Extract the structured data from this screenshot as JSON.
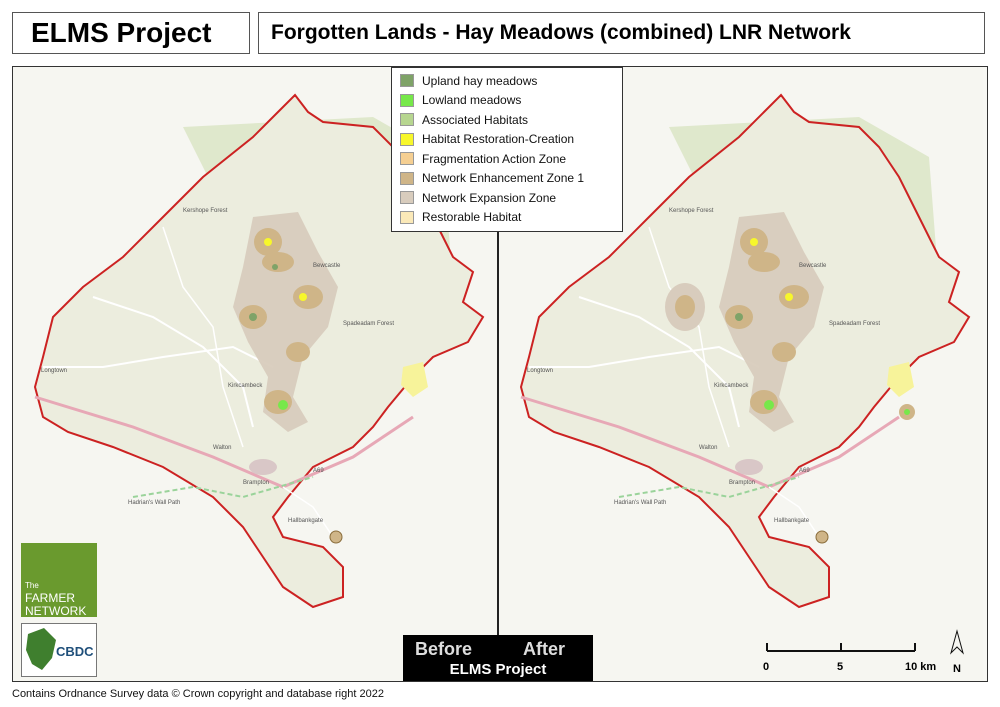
{
  "header": {
    "project_title": "ELMS Project",
    "map_title": "Forgotten Lands - Hay Meadows (combined) LNR Network"
  },
  "legend": [
    {
      "label": "Upland hay meadows",
      "color": "#7fa368"
    },
    {
      "label": "Lowland meadows",
      "color": "#77e84a"
    },
    {
      "label": "Associated Habitats",
      "color": "#b7d690"
    },
    {
      "label": "Habitat Restoration-Creation",
      "color": "#f7f72b"
    },
    {
      "label": "Fragmentation Action Zone",
      "color": "#f5cf92"
    },
    {
      "label": "Network Enhancement Zone 1",
      "color": "#cfb588"
    },
    {
      "label": "Network Expansion Zone",
      "color": "#d8ccbd"
    },
    {
      "label": "Restorable Habitat",
      "color": "#fbe9b8"
    }
  ],
  "comparison": {
    "before": "Before",
    "after": "After",
    "caption": "ELMS Project"
  },
  "scale_bar": {
    "labels": [
      "0",
      "5",
      "10 km"
    ],
    "north": "N"
  },
  "logos": {
    "farmer_small": "The",
    "farmer_line1": "FARMER",
    "farmer_line2": "NETWORK",
    "cbdc": "CBDC"
  },
  "places": [
    "Longtown",
    "Brampton",
    "Kershope Forest",
    "Spadeadam Forest",
    "Hadrian's Wall Path",
    "A69",
    "Hallbankgate",
    "Kirkcambeck",
    "Bewcastle",
    "Walton"
  ],
  "credit": "Contains Ordnance Survey data © Crown copyright and database right 2022"
}
